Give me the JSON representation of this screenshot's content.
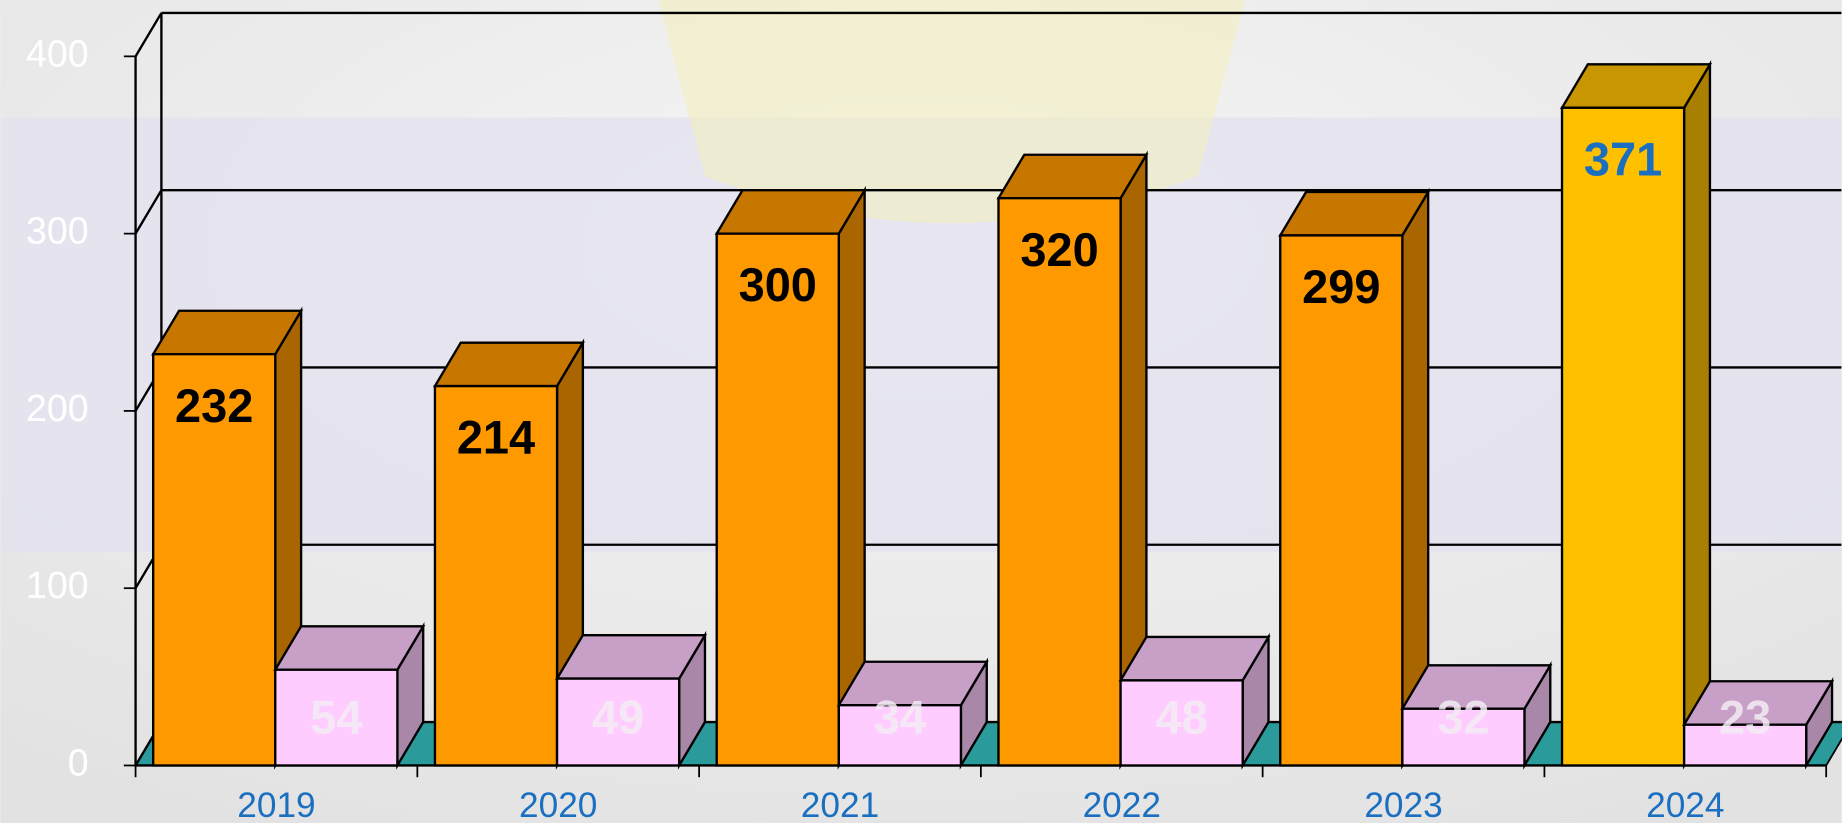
{
  "chart_data": {
    "type": "bar3d",
    "categories": [
      "2019",
      "2020",
      "2021",
      "2022",
      "2023",
      "2024"
    ],
    "series": [
      {
        "color": "#ff9900",
        "colors": [
          "#ff9900",
          "#ff9900",
          "#ff9900",
          "#ff9900",
          "#ff9900",
          "#ffc000"
        ],
        "label_colors": [
          "#000000",
          "#000000",
          "#000000",
          "#000000",
          "#000000",
          "#1a6fc0"
        ],
        "values": [
          232,
          214,
          300,
          320,
          299,
          371
        ]
      },
      {
        "color": "#ffccff",
        "label_color": "#f4ecf4",
        "values": [
          54,
          49,
          34,
          48,
          32,
          23
        ]
      }
    ],
    "ylim": [
      0,
      400
    ],
    "yticks": [
      0,
      100,
      200,
      300,
      400
    ],
    "grid": true,
    "floor_color": "#2a9a9a",
    "tick_color": "#ffffff",
    "category_color": "#1a6fc0"
  }
}
